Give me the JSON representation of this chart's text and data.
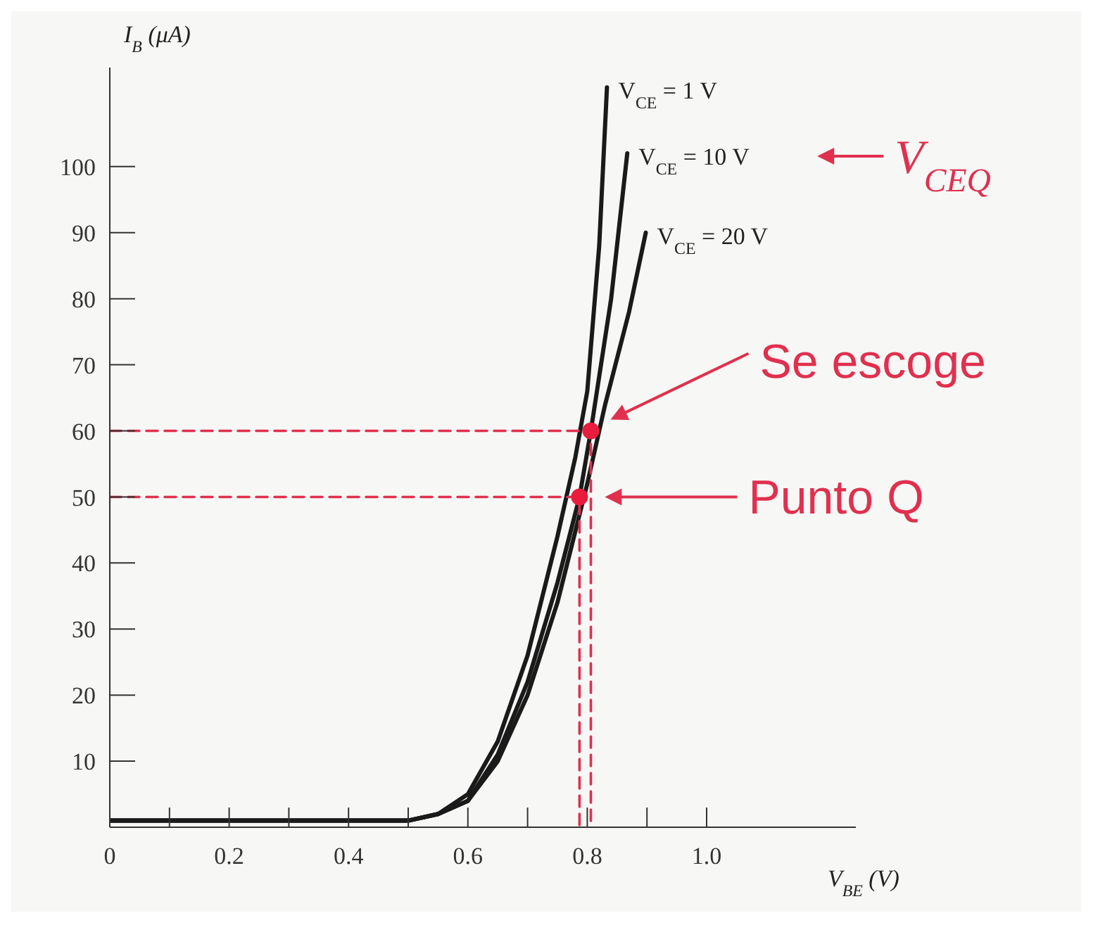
{
  "chart_data": {
    "type": "line",
    "xlabel": "V$_{BE}$ (V)",
    "ylabel": "I$_{B}$ (μA)",
    "xlim": [
      0,
      1.25
    ],
    "ylim": [
      0,
      115
    ],
    "xticks": [
      0,
      {
        "value": 0.1,
        "label": null
      },
      {
        "value": 0.2,
        "label": "0.2"
      },
      {
        "value": 0.3,
        "label": null
      },
      {
        "value": 0.4,
        "label": "0.4"
      },
      {
        "value": 0.5,
        "label": null
      },
      {
        "value": 0.6,
        "label": "0.6"
      },
      {
        "value": 0.7,
        "label": null
      },
      {
        "value": 0.8,
        "label": "0.8"
      },
      {
        "value": 0.9,
        "label": null
      },
      {
        "value": 1.0,
        "label": "1.0"
      }
    ],
    "yticks": [
      10,
      20,
      30,
      40,
      50,
      60,
      70,
      80,
      90,
      100
    ],
    "legend": false,
    "marker": "none",
    "line_style": "solid",
    "series": [
      {
        "name": "V$_{CE}$ = 1 V",
        "color": "#1a1a1a",
        "x": [
          0,
          0.5,
          0.55,
          0.6,
          0.65,
          0.7,
          0.75,
          0.78,
          0.8,
          0.82,
          0.833
        ],
        "values": [
          1,
          1,
          2,
          5,
          13,
          26,
          44,
          56,
          66,
          88,
          112
        ]
      },
      {
        "name": "V$_{CE}$ = 10 V",
        "color": "#1a1a1a",
        "x": [
          0,
          0.5,
          0.55,
          0.6,
          0.65,
          0.7,
          0.75,
          0.787,
          0.806,
          0.84,
          0.867
        ],
        "values": [
          1,
          1,
          2,
          4,
          11,
          22,
          37,
          50,
          60,
          80,
          102
        ]
      },
      {
        "name": "V$_{CE}$ = 20 V",
        "color": "#1a1a1a",
        "x": [
          0,
          0.5,
          0.55,
          0.6,
          0.65,
          0.7,
          0.75,
          0.8,
          0.83,
          0.87,
          0.898
        ],
        "values": [
          1,
          1,
          2,
          4,
          10,
          20,
          34,
          52,
          64,
          78,
          90
        ]
      },
      {
        "type": "line",
        "color": "#e0304e",
        "line_style": "dashed",
        "x": [
          0,
          0.806,
          0.806
        ],
        "values": [
          60,
          60,
          0
        ]
      },
      {
        "type": "line",
        "color": "#e0304e",
        "line_style": "dashed",
        "x": [
          0,
          0.787,
          0.787
        ],
        "values": [
          50,
          50,
          0
        ]
      },
      {
        "type": "scatter",
        "color": "#e81c3c",
        "marker": "circle",
        "x": [
          0.787,
          0.806
        ],
        "values": [
          50,
          60
        ]
      }
    ],
    "annotations": [
      "V$_{CEQ}$",
      "Se escoge",
      "Punto Q"
    ]
  }
}
